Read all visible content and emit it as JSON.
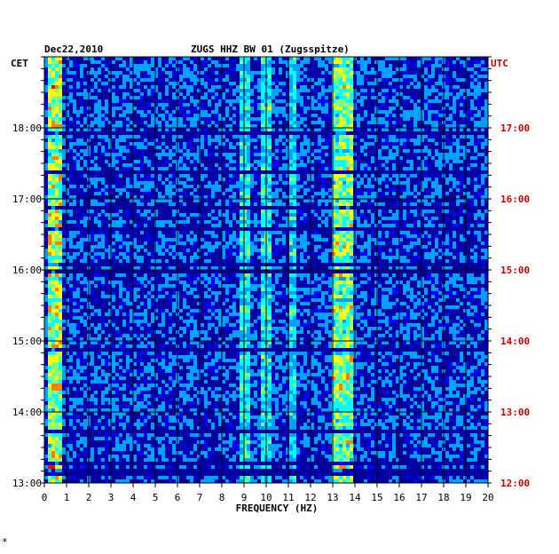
{
  "chart_data": {
    "type": "heatmap",
    "title_date": "Dec22,2010",
    "title_station": "ZUGS HHZ BW 01 (Zugsspitze)",
    "xlabel": "FREQUENCY (HZ)",
    "xlim": [
      0,
      20
    ],
    "x_ticks": [
      "0",
      "1",
      "2",
      "3",
      "4",
      "5",
      "6",
      "7",
      "8",
      "9",
      "10",
      "11",
      "12",
      "13",
      "14",
      "15",
      "16",
      "17",
      "18",
      "19",
      "20"
    ],
    "left_axis_label": "CET",
    "right_axis_label": "UTC",
    "left_ticks": [
      "18:00",
      "17:00",
      "16:00",
      "15:00",
      "14:00",
      "13:00"
    ],
    "right_ticks": [
      "17:00",
      "16:00",
      "15:00",
      "14:00",
      "13:00",
      "12:00"
    ],
    "time_range_cet": [
      "13:00",
      "18:50"
    ],
    "colormap": [
      "#00008b",
      "#0000ff",
      "#00a0ff",
      "#00ffff",
      "#80ff80",
      "#ffff00",
      "#ff8000",
      "#ff0000"
    ],
    "energy_bands_hz": [
      {
        "name": "0.2-0.8 Hz",
        "from": 0.2,
        "to": 0.8,
        "level": 0.85
      },
      {
        "name": "~9 Hz",
        "from": 8.8,
        "to": 9.3,
        "level": 0.55
      },
      {
        "name": "~10 Hz",
        "from": 9.7,
        "to": 10.2,
        "level": 0.55
      },
      {
        "name": "~11.2 Hz",
        "from": 11.0,
        "to": 11.4,
        "level": 0.5
      },
      {
        "name": "12.9-13.9 Hz",
        "from": 12.9,
        "to": 13.9,
        "level": 0.75
      }
    ],
    "colors": {
      "axis": "#000000",
      "utc": "#cc0000",
      "background": "#0000a0"
    }
  },
  "footer_mark": "*"
}
